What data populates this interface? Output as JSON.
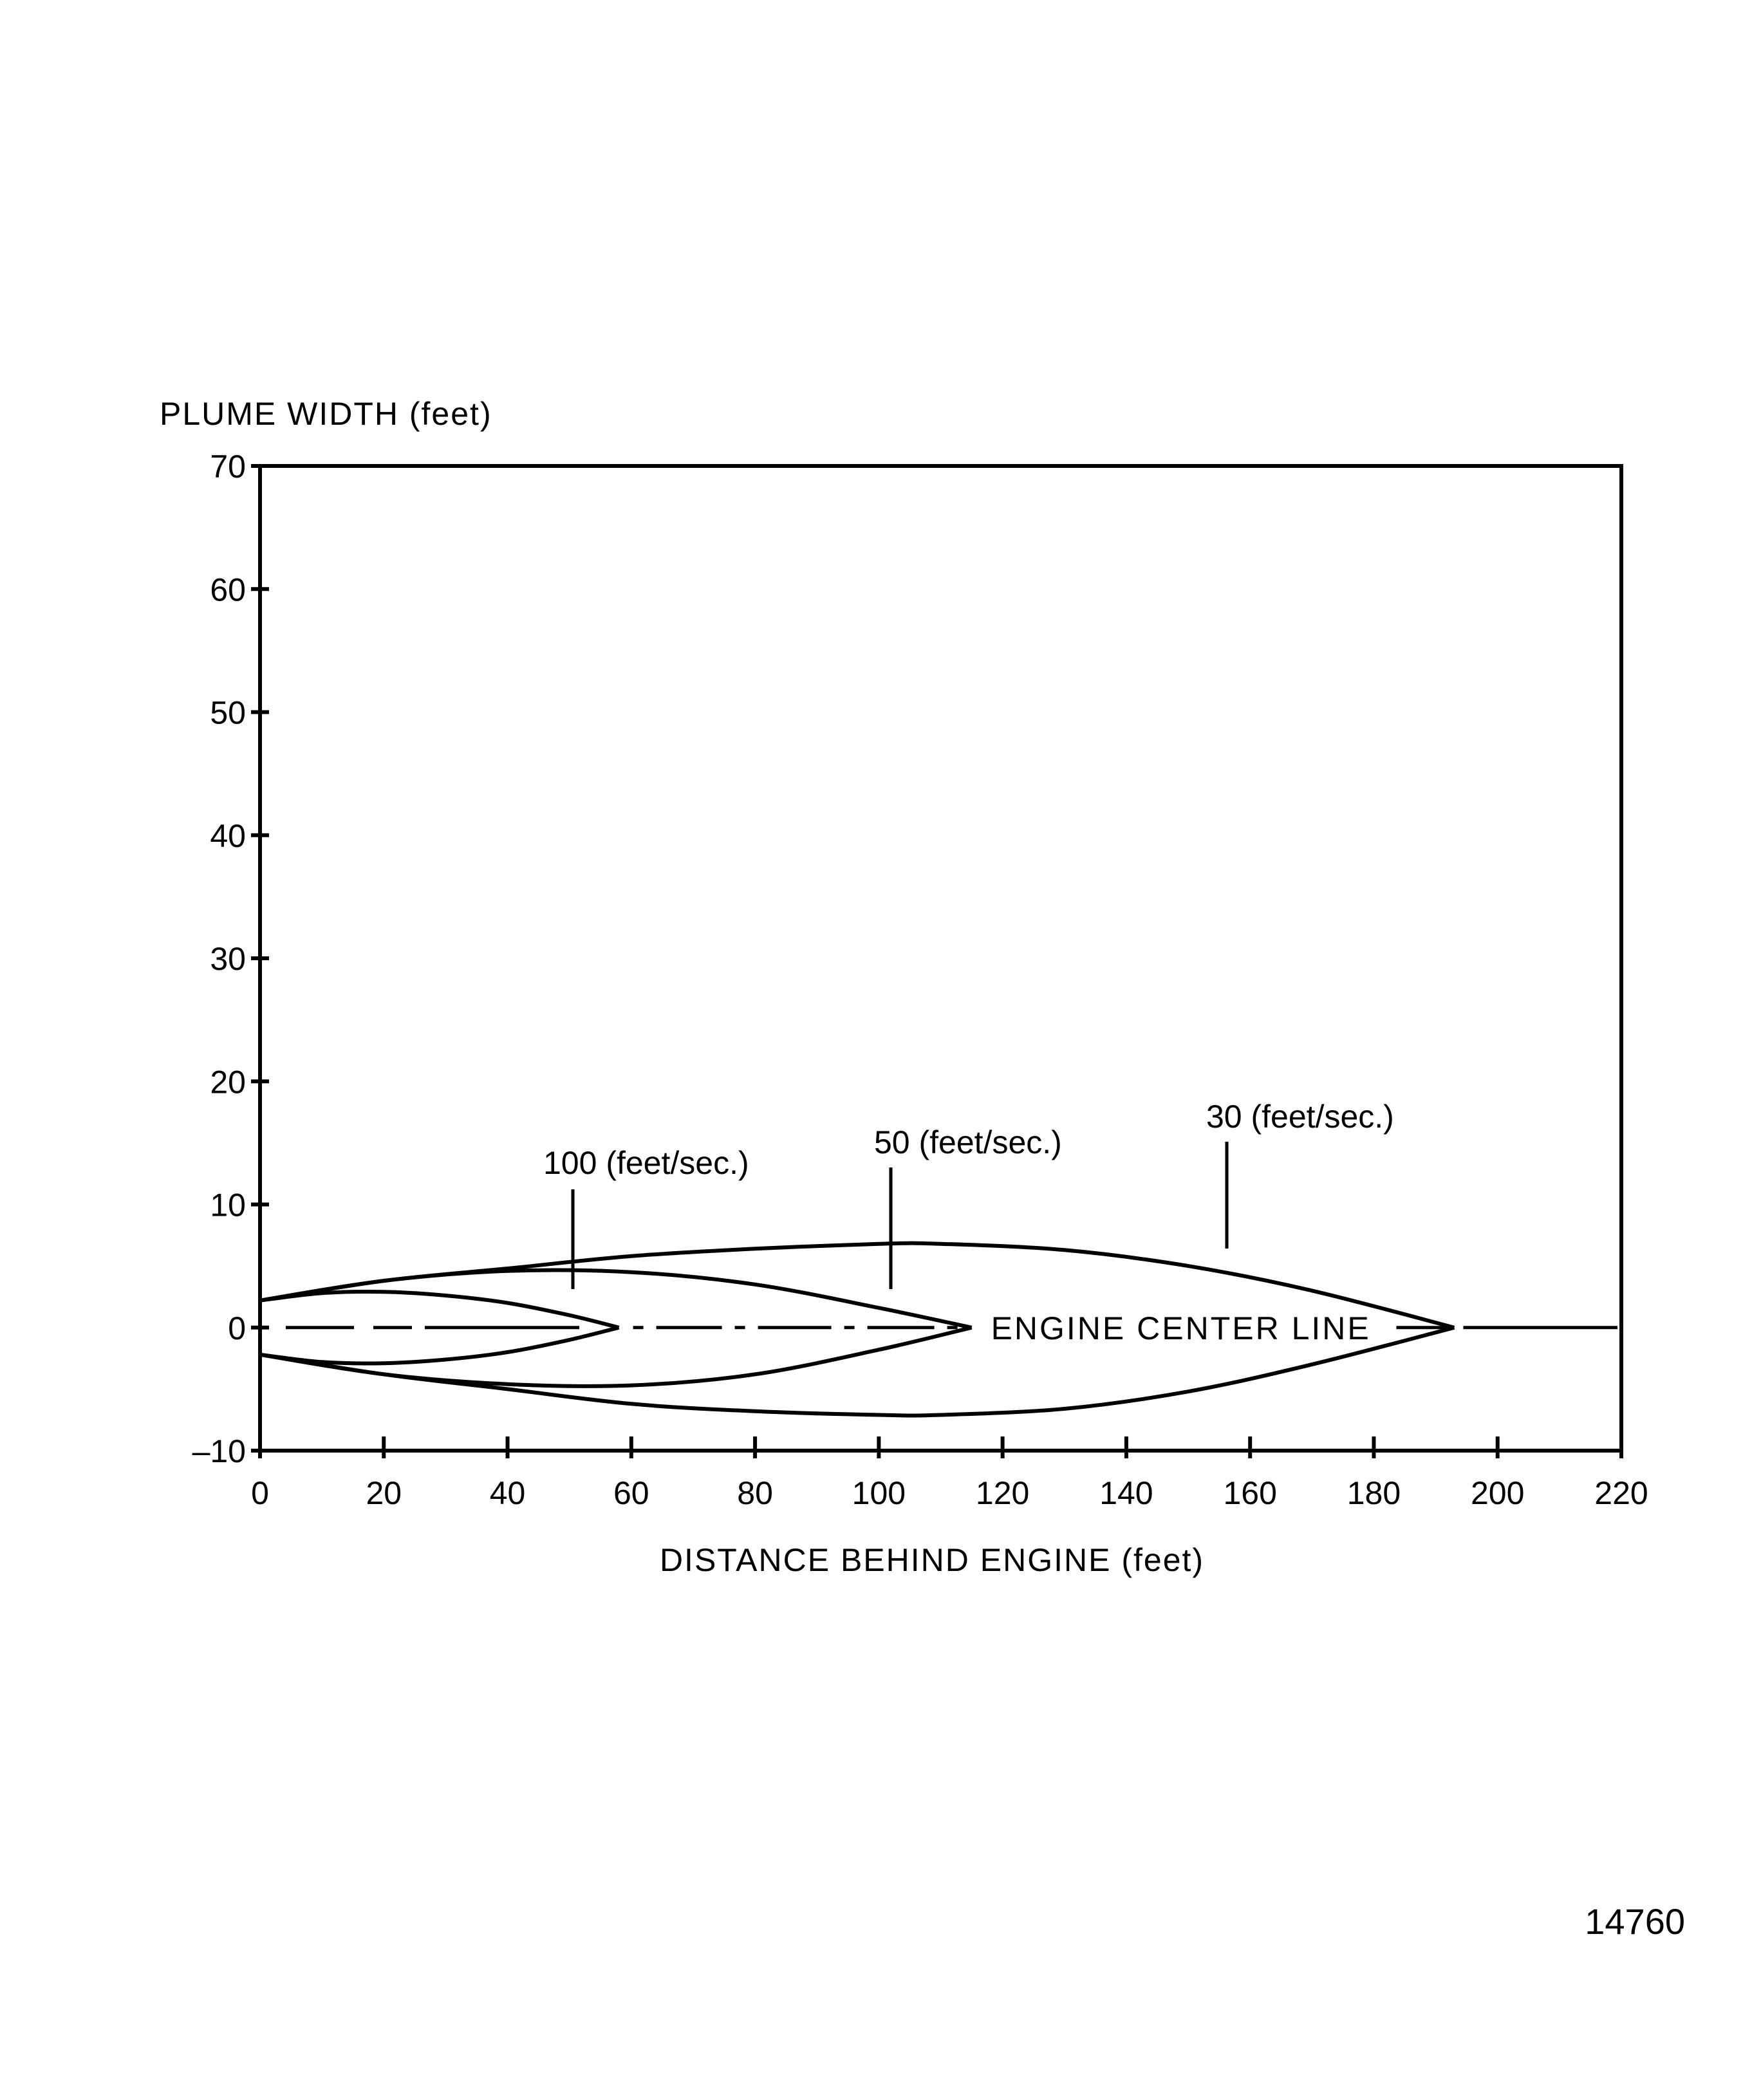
{
  "chart_data": {
    "type": "line",
    "ylabel": "PLUME WIDTH (feet)",
    "xlabel": "DISTANCE BEHIND ENGINE (feet)",
    "xlim": [
      0,
      220
    ],
    "ylim": [
      -10,
      70
    ],
    "xticks": [
      "0",
      "20",
      "40",
      "60",
      "80",
      "100",
      "120",
      "140",
      "160",
      "180",
      "200",
      "220"
    ],
    "yticks": [
      "70",
      "60",
      "50",
      "40",
      "30",
      "20",
      "10",
      "0",
      "–10"
    ],
    "grid": false,
    "centerline": {
      "label": "ENGINE CENTER LINE",
      "y": 0
    },
    "series": [
      {
        "name": "100 (feet/sec.)",
        "upper": {
          "x": [
            0,
            10,
            20,
            30,
            40,
            50,
            58
          ],
          "y": [
            2.2,
            2.8,
            2.9,
            2.6,
            2.0,
            1.0,
            0
          ]
        },
        "lower": {
          "x": [
            0,
            10,
            20,
            30,
            40,
            50,
            58
          ],
          "y": [
            -2.2,
            -2.8,
            -2.9,
            -2.6,
            -2.0,
            -1.0,
            0
          ]
        }
      },
      {
        "name": "50 (feet/sec.)",
        "upper": {
          "x": [
            0,
            20,
            40,
            60,
            80,
            100,
            115
          ],
          "y": [
            2.2,
            3.8,
            4.6,
            4.5,
            3.5,
            1.6,
            0
          ]
        },
        "lower": {
          "x": [
            0,
            20,
            40,
            60,
            80,
            100,
            115
          ],
          "y": [
            -2.2,
            -3.8,
            -4.6,
            -4.7,
            -3.8,
            -1.8,
            0
          ]
        }
      },
      {
        "name": "30 (feet/sec.)",
        "upper": {
          "x": [
            0,
            20,
            40,
            60,
            80,
            100,
            110,
            130,
            150,
            170,
            193
          ],
          "y": [
            2.2,
            3.8,
            4.8,
            5.8,
            6.4,
            6.8,
            6.8,
            6.3,
            5.0,
            3.0,
            0
          ]
        },
        "lower": {
          "x": [
            0,
            20,
            40,
            60,
            80,
            100,
            110,
            130,
            150,
            170,
            193
          ],
          "y": [
            -2.2,
            -3.8,
            -5.0,
            -6.2,
            -6.8,
            -7.1,
            -7.1,
            -6.6,
            -5.2,
            -3.0,
            0
          ]
        }
      }
    ],
    "annotations": [
      {
        "text": "100 (feet/sec.)",
        "series": 0
      },
      {
        "text": "50 (feet/sec.)",
        "series": 1
      },
      {
        "text": "30 (feet/sec.)",
        "series": 2
      }
    ]
  },
  "figure_number": "14760"
}
